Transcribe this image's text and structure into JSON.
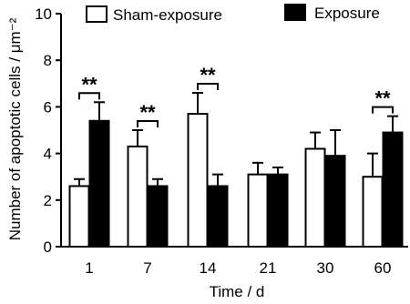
{
  "chart_data": {
    "type": "bar",
    "xlabel": "Time / d",
    "ylabel": "Number of apoptotic cells / μm⁻²",
    "ylim": [
      0,
      10
    ],
    "yticks": [
      "0",
      "2",
      "4",
      "6",
      "8",
      "10"
    ],
    "categories": [
      "1",
      "7",
      "14",
      "21",
      "30",
      "60"
    ],
    "series": [
      {
        "name": "Sham-exposure",
        "fill": "#ffffff",
        "values": [
          2.6,
          4.3,
          5.7,
          3.1,
          4.2,
          3.0
        ],
        "errors": [
          0.3,
          0.7,
          0.9,
          0.5,
          0.7,
          1.0
        ]
      },
      {
        "name": "Exposure",
        "fill": "#000000",
        "values": [
          5.4,
          2.6,
          2.6,
          3.1,
          3.9,
          4.9
        ],
        "errors": [
          0.8,
          0.3,
          0.5,
          0.3,
          1.1,
          0.7
        ]
      }
    ],
    "significance": [
      {
        "category": "1",
        "label": "**"
      },
      {
        "category": "7",
        "label": "**"
      },
      {
        "category": "14",
        "label": "**"
      },
      {
        "category": "60",
        "label": "**"
      }
    ],
    "legend_placement": "top",
    "grid": false
  }
}
